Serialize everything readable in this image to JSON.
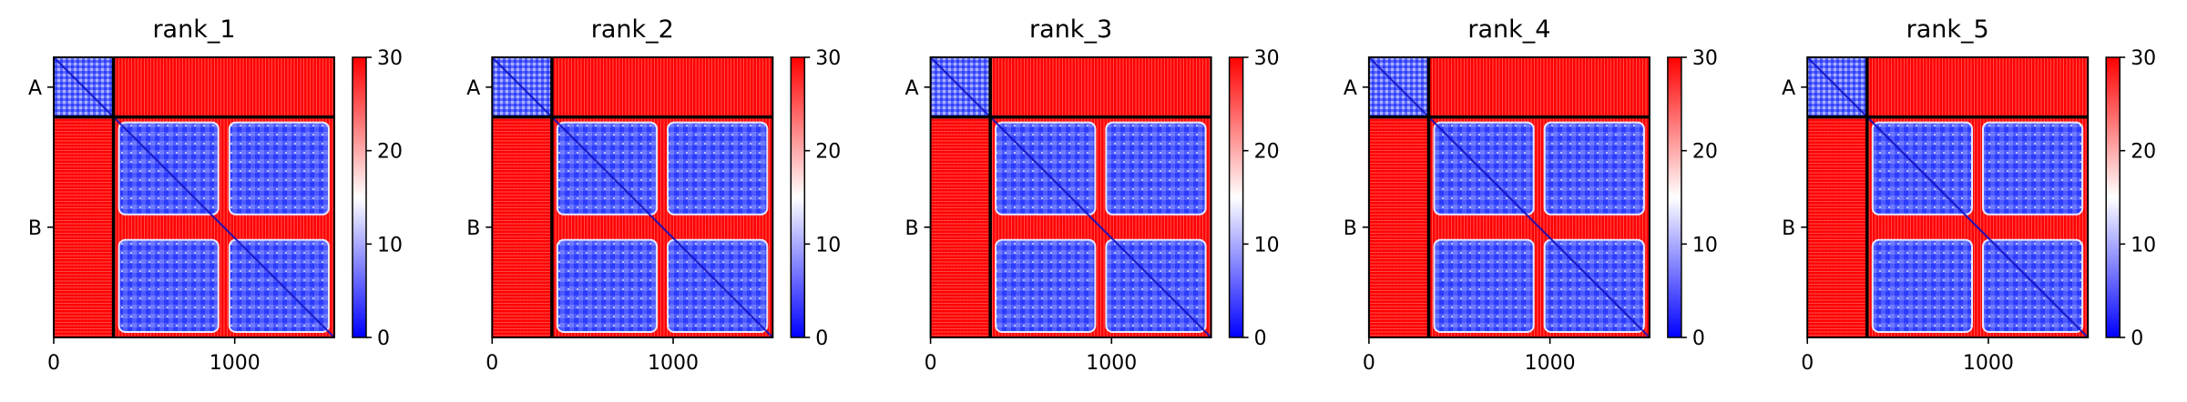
{
  "chart_data": [
    {
      "type": "heatmap",
      "title": "rank_1",
      "x_ticks": [
        0,
        1000
      ],
      "row_labels": [
        "A",
        "B"
      ],
      "chain_boundary": 330,
      "length": 1550,
      "colorbar": {
        "min": 0,
        "max": 30,
        "ticks": [
          0,
          10,
          20,
          30
        ],
        "colors": [
          "#0000ff",
          "#ffffff",
          "#ff0000"
        ]
      },
      "grid": false
    },
    {
      "type": "heatmap",
      "title": "rank_2",
      "x_ticks": [
        0,
        1000
      ],
      "row_labels": [
        "A",
        "B"
      ],
      "chain_boundary": 330,
      "length": 1550,
      "colorbar": {
        "min": 0,
        "max": 30,
        "ticks": [
          0,
          10,
          20,
          30
        ],
        "colors": [
          "#0000ff",
          "#ffffff",
          "#ff0000"
        ]
      },
      "grid": false
    },
    {
      "type": "heatmap",
      "title": "rank_3",
      "x_ticks": [
        0,
        1000
      ],
      "row_labels": [
        "A",
        "B"
      ],
      "chain_boundary": 330,
      "length": 1550,
      "colorbar": {
        "min": 0,
        "max": 30,
        "ticks": [
          0,
          10,
          20,
          30
        ],
        "colors": [
          "#0000ff",
          "#ffffff",
          "#ff0000"
        ]
      },
      "grid": false
    },
    {
      "type": "heatmap",
      "title": "rank_4",
      "x_ticks": [
        0,
        1000
      ],
      "row_labels": [
        "A",
        "B"
      ],
      "chain_boundary": 330,
      "length": 1550,
      "colorbar": {
        "min": 0,
        "max": 30,
        "ticks": [
          0,
          10,
          20,
          30
        ],
        "colors": [
          "#0000ff",
          "#ffffff",
          "#ff0000"
        ]
      },
      "grid": false
    },
    {
      "type": "heatmap",
      "title": "rank_5",
      "x_ticks": [
        0,
        1000
      ],
      "row_labels": [
        "A",
        "B"
      ],
      "chain_boundary": 330,
      "length": 1550,
      "colorbar": {
        "min": 0,
        "max": 30,
        "ticks": [
          0,
          10,
          20,
          30
        ],
        "colors": [
          "#0000ff",
          "#ffffff",
          "#ff0000"
        ]
      },
      "grid": false
    }
  ]
}
